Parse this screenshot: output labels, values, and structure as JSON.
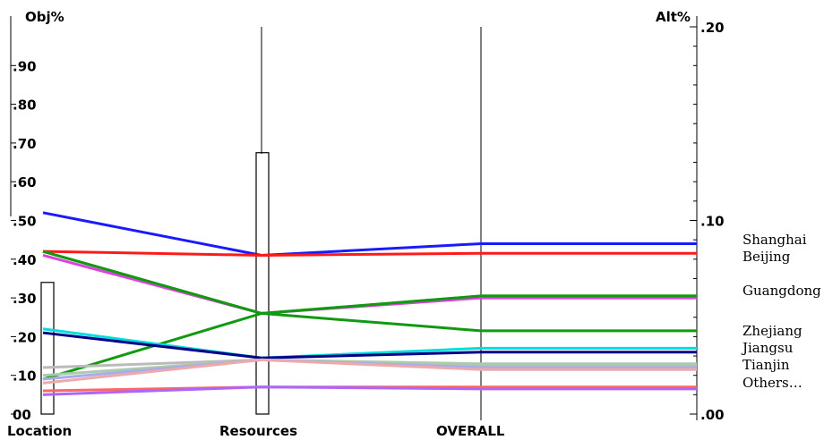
{
  "chart_data": {
    "type": "line",
    "left_axis_label": "Obj%",
    "right_axis_label": "Alt%",
    "categories": [
      "Location",
      "Resources",
      "OVERALL"
    ],
    "left_ticks": [
      "00",
      ".10",
      ".20",
      ".30",
      ".40",
      ".50",
      ".60",
      ".70",
      ".80",
      ".90"
    ],
    "right_ticks": [
      ".00",
      ".10",
      ".20"
    ],
    "ylim_left": [
      0,
      1
    ],
    "ylim_right": [
      0,
      0.2
    ],
    "weights": [
      0.34,
      0.675
    ],
    "series": [
      {
        "name": "Shanghai",
        "color": "#1a1aff",
        "values": [
          0.52,
          0.41,
          0.088
        ]
      },
      {
        "name": "Beijing",
        "color": "#ff1a1a",
        "values": [
          0.42,
          0.41,
          0.083
        ]
      },
      {
        "name": "Guangdong",
        "color": "#33dd33",
        "values": [
          0.42,
          0.26,
          0.061
        ]
      },
      {
        "name": "",
        "color": "#e040e0",
        "values": [
          0.41,
          0.26,
          0.06
        ]
      },
      {
        "name": "Zhejiang",
        "color": "#119911",
        "values": [
          0.42,
          0.26,
          0.043
        ]
      },
      {
        "name": "",
        "color": "#119911",
        "values": [
          0.09,
          0.26,
          0.061
        ]
      },
      {
        "name": "Jiangsu",
        "color": "#00dddd",
        "values": [
          0.22,
          0.145,
          0.034
        ]
      },
      {
        "name": "",
        "color": "#000088",
        "values": [
          0.21,
          0.145,
          0.032
        ]
      },
      {
        "name": "Tianjin",
        "color": "#bbbbbb",
        "values": [
          0.12,
          0.14,
          0.025
        ]
      },
      {
        "name": "",
        "color": "#aaccaa",
        "values": [
          0.1,
          0.14,
          0.026
        ]
      },
      {
        "name": "",
        "color": "#aaaaee",
        "values": [
          0.09,
          0.14,
          0.024
        ]
      },
      {
        "name": "",
        "color": "#eeaaaa",
        "values": [
          0.08,
          0.14,
          0.023
        ]
      },
      {
        "name": "Others…",
        "color": "#ff6666",
        "values": [
          0.06,
          0.07,
          0.014
        ]
      },
      {
        "name": "",
        "color": "#aa66ff",
        "values": [
          0.05,
          0.07,
          0.013
        ]
      }
    ],
    "legend_placement": "right",
    "grid": false
  }
}
